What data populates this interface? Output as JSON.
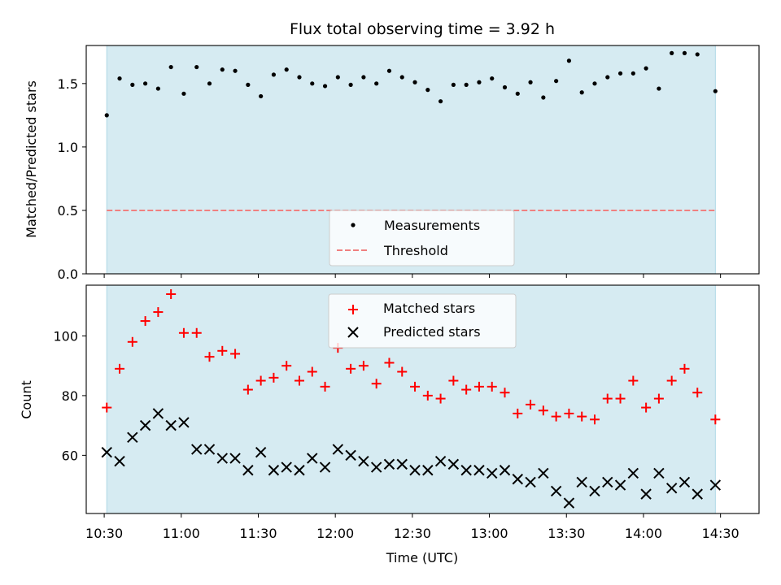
{
  "chart_data": [
    {
      "type": "scatter",
      "title": "Flux total observing time = 3.92 h",
      "ylabel": "Matched/Predicted stars",
      "xlim": [
        "10:23",
        "14:45"
      ],
      "ylim": [
        0,
        1.8
      ],
      "yticks": [
        0.0,
        0.5,
        1.0,
        1.5
      ],
      "ytick_labels": [
        "0.0",
        "0.5",
        "1.0",
        "1.5"
      ],
      "shaded_span": [
        "10:31",
        "14:28"
      ],
      "threshold": 0.5,
      "legend_position": "lower-center",
      "legend": [
        "Measurements",
        "Threshold"
      ],
      "x": [
        "10:31",
        "10:36",
        "10:41",
        "10:46",
        "10:51",
        "10:56",
        "11:01",
        "11:06",
        "11:11",
        "11:16",
        "11:21",
        "11:26",
        "11:31",
        "11:36",
        "11:41",
        "11:46",
        "11:51",
        "11:56",
        "12:01",
        "12:06",
        "12:11",
        "12:16",
        "12:21",
        "12:26",
        "12:31",
        "12:36",
        "12:41",
        "12:46",
        "12:51",
        "12:56",
        "13:01",
        "13:06",
        "13:11",
        "13:16",
        "13:21",
        "13:26",
        "13:31",
        "13:36",
        "13:41",
        "13:46",
        "13:51",
        "13:56",
        "14:01",
        "14:06",
        "14:11",
        "14:16",
        "14:21",
        "14:28"
      ],
      "y": [
        1.25,
        1.54,
        1.49,
        1.5,
        1.46,
        1.63,
        1.42,
        1.63,
        1.5,
        1.61,
        1.6,
        1.49,
        1.4,
        1.57,
        1.61,
        1.55,
        1.5,
        1.48,
        1.55,
        1.49,
        1.55,
        1.5,
        1.6,
        1.55,
        1.51,
        1.45,
        1.36,
        1.49,
        1.49,
        1.51,
        1.54,
        1.47,
        1.42,
        1.51,
        1.39,
        1.52,
        1.68,
        1.43,
        1.5,
        1.55,
        1.58,
        1.58,
        1.62,
        1.46,
        1.74,
        1.74,
        1.73,
        1.44
      ]
    },
    {
      "type": "scatter",
      "xlabel": "Time (UTC)",
      "ylabel": "Count",
      "xlim": [
        "10:23",
        "14:45"
      ],
      "ylim": [
        40.5,
        117
      ],
      "xticks": [
        "10:30",
        "11:00",
        "11:30",
        "12:00",
        "12:30",
        "13:00",
        "13:30",
        "14:00",
        "14:30"
      ],
      "yticks": [
        60,
        80,
        100
      ],
      "shaded_span": [
        "10:31",
        "14:28"
      ],
      "legend_position": "upper-center",
      "series": [
        {
          "name": "Matched stars",
          "color": "#ff0000",
          "marker": "plus",
          "x": [
            "10:31",
            "10:36",
            "10:41",
            "10:46",
            "10:51",
            "10:56",
            "11:01",
            "11:06",
            "11:11",
            "11:16",
            "11:21",
            "11:26",
            "11:31",
            "11:36",
            "11:41",
            "11:46",
            "11:51",
            "11:56",
            "12:01",
            "12:06",
            "12:11",
            "12:16",
            "12:21",
            "12:26",
            "12:31",
            "12:36",
            "12:41",
            "12:46",
            "12:51",
            "12:56",
            "13:01",
            "13:06",
            "13:11",
            "13:16",
            "13:21",
            "13:26",
            "13:31",
            "13:36",
            "13:41",
            "13:46",
            "13:51",
            "13:56",
            "14:01",
            "14:06",
            "14:11",
            "14:16",
            "14:21",
            "14:28"
          ],
          "values": [
            76,
            89,
            98,
            105,
            108,
            114,
            101,
            101,
            93,
            95,
            94,
            82,
            85,
            86,
            90,
            85,
            88,
            83,
            96,
            89,
            90,
            84,
            91,
            88,
            83,
            80,
            79,
            85,
            82,
            83,
            83,
            81,
            74,
            77,
            75,
            73,
            74,
            73,
            72,
            79,
            79,
            85,
            76,
            79,
            85,
            89,
            81,
            72
          ]
        },
        {
          "name": "Predicted stars",
          "color": "#000000",
          "marker": "x",
          "x": [
            "10:31",
            "10:36",
            "10:41",
            "10:46",
            "10:51",
            "10:56",
            "11:01",
            "11:06",
            "11:11",
            "11:16",
            "11:21",
            "11:26",
            "11:31",
            "11:36",
            "11:41",
            "11:46",
            "11:51",
            "11:56",
            "12:01",
            "12:06",
            "12:11",
            "12:16",
            "12:21",
            "12:26",
            "12:31",
            "12:36",
            "12:41",
            "12:46",
            "12:51",
            "12:56",
            "13:01",
            "13:06",
            "13:11",
            "13:16",
            "13:21",
            "13:26",
            "13:31",
            "13:36",
            "13:41",
            "13:46",
            "13:51",
            "13:56",
            "14:01",
            "14:06",
            "14:11",
            "14:16",
            "14:21",
            "14:28"
          ],
          "values": [
            61,
            58,
            66,
            70,
            74,
            70,
            71,
            62,
            62,
            59,
            59,
            55,
            61,
            55,
            56,
            55,
            59,
            56,
            62,
            60,
            58,
            56,
            57,
            57,
            55,
            55,
            58,
            57,
            55,
            55,
            54,
            55,
            52,
            51,
            54,
            48,
            44,
            51,
            48,
            51,
            50,
            54,
            47,
            54,
            49,
            51,
            47,
            50
          ]
        }
      ]
    }
  ],
  "colors": {
    "shade": "#add8e6",
    "threshold": "#f08080",
    "measurement": "#000000"
  }
}
